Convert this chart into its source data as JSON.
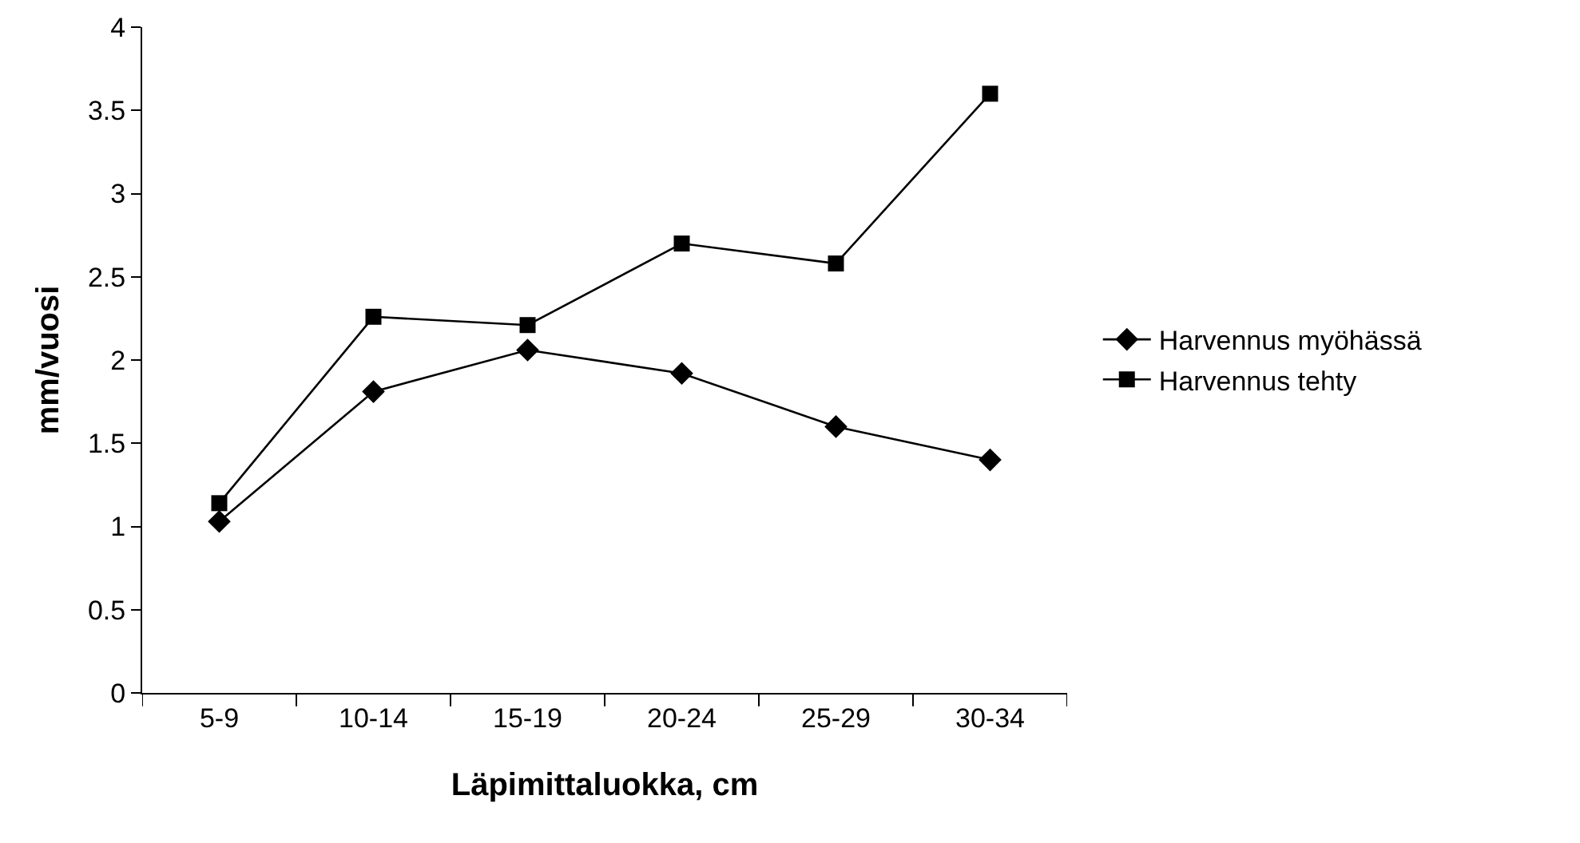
{
  "chart_data": {
    "type": "line",
    "xlabel": "Läpimittaluokka, cm",
    "ylabel": "mm/vuosi",
    "categories": [
      "5-9",
      "10-14",
      "15-19",
      "20-24",
      "25-29",
      "30-34"
    ],
    "series": [
      {
        "name": "Harvennus myöhässä",
        "color": "#000000",
        "marker": "diamond",
        "values": [
          1.03,
          1.81,
          2.06,
          1.92,
          1.6,
          1.4
        ]
      },
      {
        "name": "Harvennus tehty",
        "color": "#000000",
        "marker": "square",
        "values": [
          1.14,
          2.26,
          2.21,
          2.7,
          2.58,
          3.6
        ]
      }
    ],
    "ylim": [
      0,
      4
    ],
    "yticks": [
      0,
      0.5,
      1,
      1.5,
      2,
      2.5,
      3,
      3.5,
      4
    ],
    "grid": false,
    "legend": "right",
    "line_style": "solid"
  }
}
